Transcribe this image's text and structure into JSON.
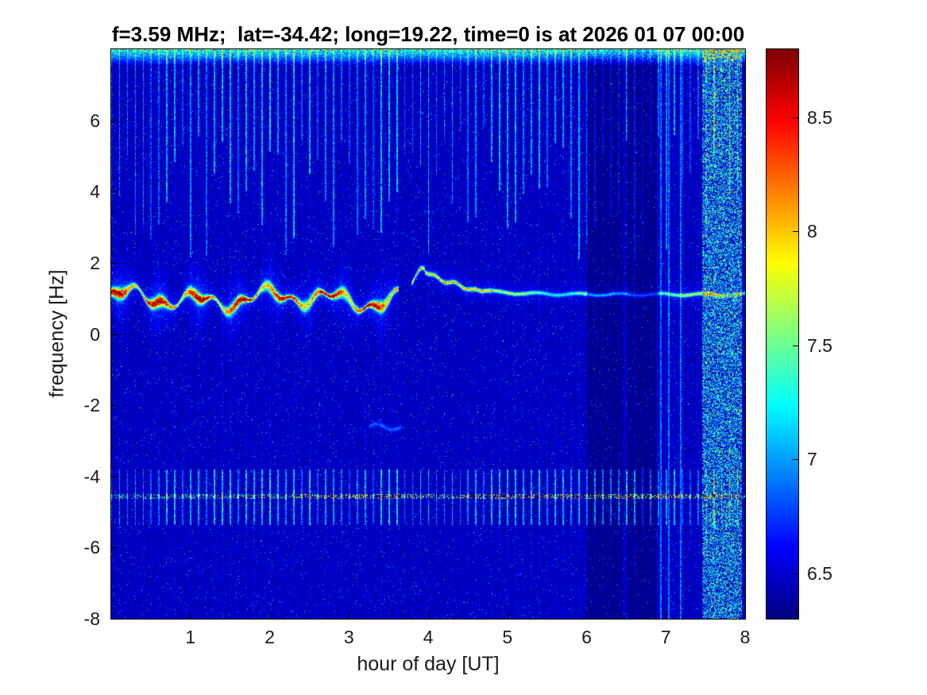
{
  "chart_data": {
    "type": "heatmap",
    "title": "f=3.59 MHz;  lat=-34.42; long=19.22, time=0 is at 2026 01 07 00:00",
    "xlabel": "hour of day [UT]",
    "ylabel": "frequency [Hz]",
    "xlim": [
      0,
      8
    ],
    "ylim": [
      -8,
      8
    ],
    "x_ticks": [
      1,
      2,
      3,
      4,
      5,
      6,
      7,
      8
    ],
    "y_ticks": [
      6,
      4,
      2,
      0,
      -2,
      -4,
      -6,
      -8
    ],
    "grid": false,
    "colorbar": {
      "position": "right",
      "ticks": [
        8.5,
        8,
        7.5,
        7,
        6.5
      ],
      "clim": [
        6.3,
        8.8
      ],
      "colormap": "jet"
    },
    "features": {
      "background_level": 6.45,
      "noise_sigma": 0.13,
      "carrier_trace": {
        "y_center": 1.0,
        "wave_amplitude": 0.25,
        "wavy_until_hour": 3.62,
        "step_hour": 3.78,
        "step_peak_hour": 3.93,
        "step_peak_y": 1.87,
        "post_step_y": 1.12,
        "peak_level": 8.7,
        "thin_level": 7.9
      },
      "pulse_band": {
        "y_center": -4.55,
        "y_span": [
          -5.35,
          -3.8
        ],
        "period_hours": 0.1,
        "level": 7.7
      },
      "top_edge_band": {
        "y_start": 7.55,
        "level": 8.4
      },
      "vertical_stripes": {
        "period_hours": 0.1,
        "top_region_y_min": 2.0,
        "level": 7.4
      },
      "dark_bands_x": [
        [
          6.0,
          6.45
        ],
        [
          6.5,
          6.88
        ]
      ],
      "noisy_column_x": [
        7.45,
        7.95
      ],
      "cyan_lines_x": [
        6.93,
        7.03,
        7.18
      ],
      "blob": {
        "x": [
          3.25,
          3.65
        ],
        "y": -2.6,
        "level": 7.0
      }
    }
  }
}
